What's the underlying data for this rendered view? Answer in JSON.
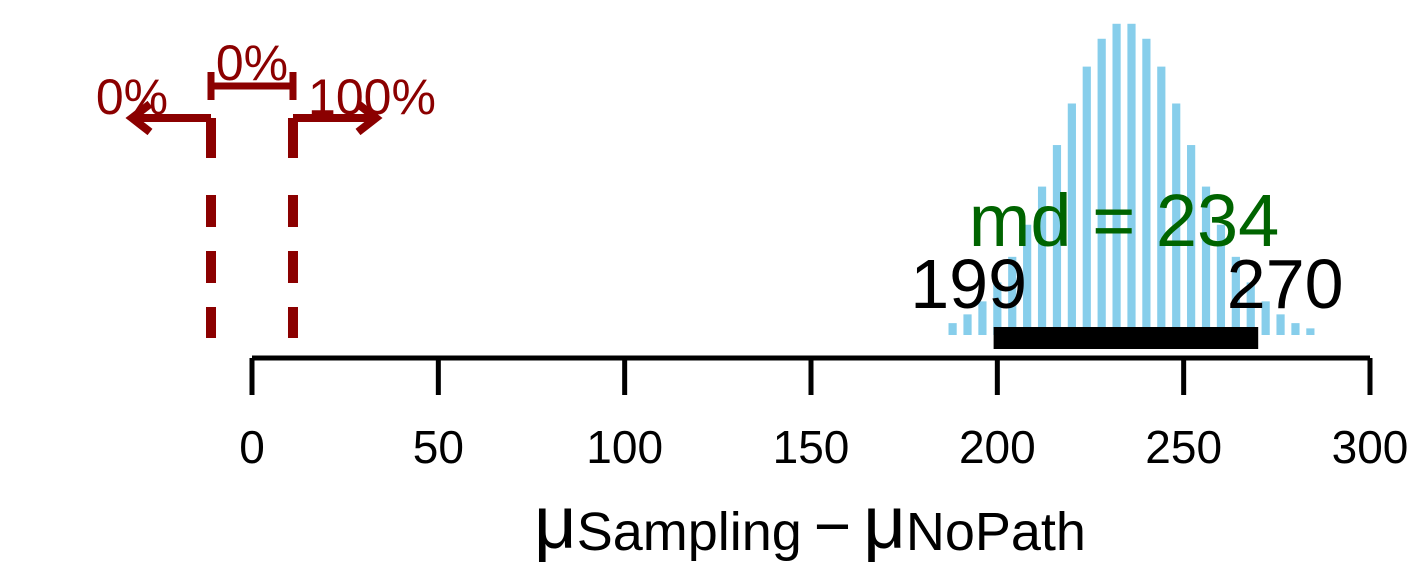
{
  "chart_data": {
    "type": "histogram",
    "bins": [
      186,
      190,
      194,
      198,
      202,
      206,
      210,
      214,
      218,
      222,
      226,
      230,
      234,
      238,
      242,
      246,
      250,
      254,
      258,
      262,
      266,
      270,
      274,
      278,
      282,
      286
    ],
    "values": [
      0.00084,
      0.00146,
      0.00238,
      0.00372,
      0.00553,
      0.0078,
      0.0105,
      0.01344,
      0.01638,
      0.01899,
      0.02096,
      0.02202,
      0.02202,
      0.02096,
      0.01899,
      0.01638,
      0.01344,
      0.0105,
      0.0078,
      0.00553,
      0.00372,
      0.00238,
      0.00146,
      0.00084,
      0.00047
    ],
    "color": "#87ceeb",
    "xlim": [
      0,
      300
    ],
    "ylim": [
      0,
      0.0225
    ],
    "xticks": [
      0,
      50,
      100,
      150,
      200,
      250,
      300
    ],
    "xlabel": [
      "μ",
      "Sampling",
      "−",
      "μ",
      "NoPath"
    ],
    "mode": {
      "value": 234,
      "label": "md = 234",
      "color": "#006400"
    },
    "hdi": {
      "values": [
        199,
        270
      ],
      "color": "#000000"
    },
    "rope": {
      "limits": [
        -11,
        11
      ],
      "values": [
        0,
        0,
        100
      ],
      "value_labels": [
        "0%",
        "0%",
        "100%"
      ],
      "color": "#8b0000"
    }
  }
}
